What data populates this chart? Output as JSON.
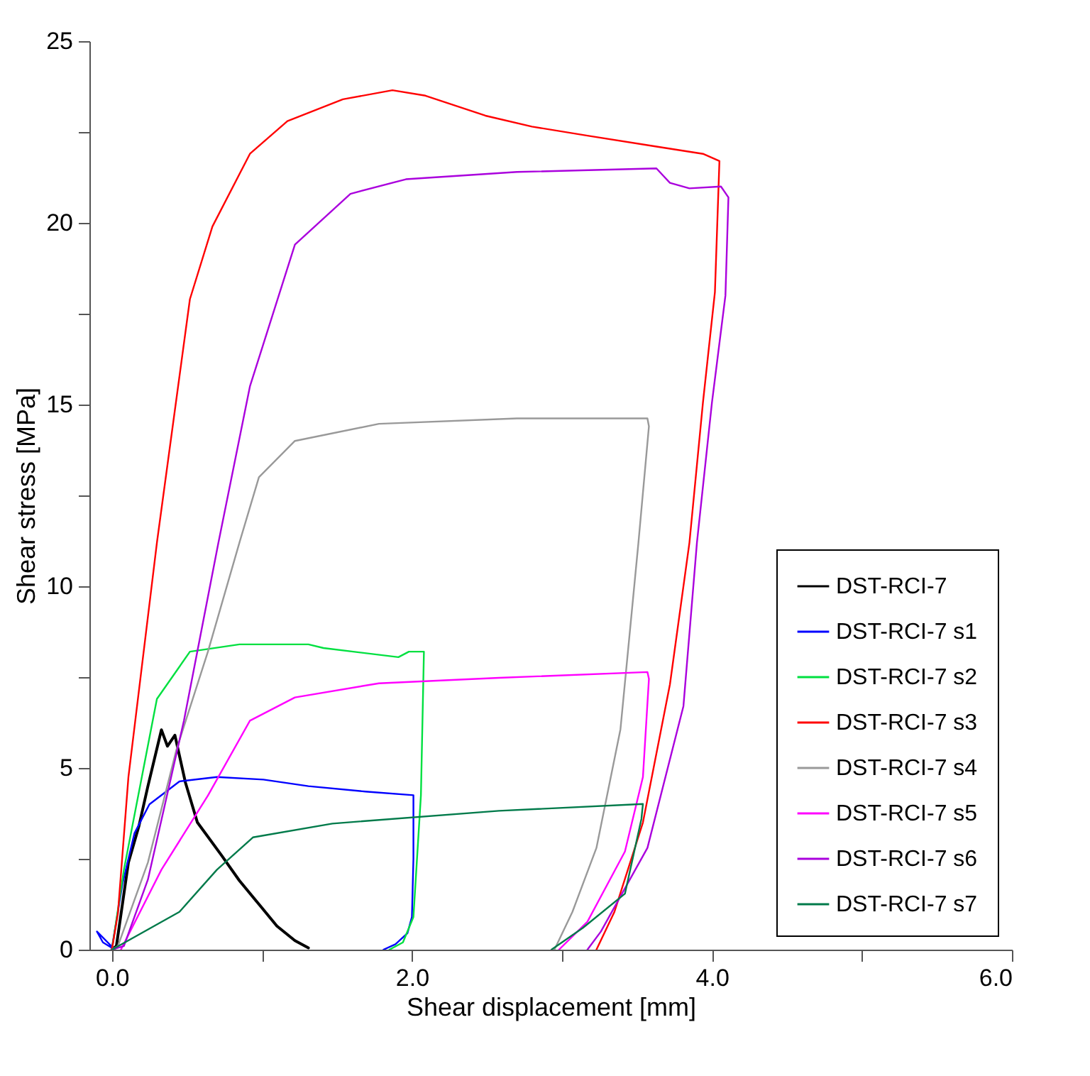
{
  "chart_data": {
    "type": "line",
    "xlabel": "Shear displacement [mm]",
    "ylabel": "Shear stress [MPa]",
    "xlim": [
      -0.15,
      6.0
    ],
    "xticks": [
      {
        "value": 0,
        "label": "0.0"
      },
      {
        "value": 1,
        "label": null
      },
      {
        "value": 2,
        "label": "2.0"
      },
      {
        "value": 3,
        "label": null
      },
      {
        "value": 4,
        "label": "4.0"
      },
      {
        "value": 5,
        "label": null
      },
      {
        "value": 6,
        "label": "6.0"
      }
    ],
    "ylim": [
      0,
      25
    ],
    "yticks": [
      0,
      {
        "value": 2.5,
        "label": null
      },
      5,
      {
        "value": 7.5,
        "label": null
      },
      10,
      {
        "value": 12.5,
        "label": null
      },
      15,
      {
        "value": 17.5,
        "label": null
      },
      20,
      {
        "value": 22.5,
        "label": null
      },
      25
    ],
    "grid": false,
    "legend": "bottom right",
    "marker": "none",
    "line_style": "solid",
    "series": [
      {
        "name": "DST-RCI-7",
        "color": "#000000",
        "x": [
          0,
          0.03,
          0.11,
          0.18,
          0.24,
          0.33,
          0.37,
          0.42,
          0.49,
          0.57,
          0.73,
          0.85,
          0.99,
          1.1,
          1.22,
          1.31
        ],
        "values": [
          0,
          0.1,
          2.4,
          3.4,
          4.5,
          6.05,
          5.6,
          5.9,
          4.6,
          3.5,
          2.6,
          1.9,
          1.2,
          0.65,
          0.25,
          0.05
        ]
      },
      {
        "name": "DST-RCI-7 s1",
        "color": "#0000ff",
        "x": [
          0.02,
          -0.1,
          -0.06,
          0,
          0.07,
          0.15,
          0.25,
          0.45,
          0.7,
          1.01,
          1.31,
          1.69,
          2.01,
          2.01,
          2.0,
          1.97,
          1.89,
          1.81
        ],
        "values": [
          0,
          0.5,
          0.2,
          0.05,
          1.8,
          3.2,
          4.0,
          4.63,
          4.75,
          4.68,
          4.5,
          4.35,
          4.25,
          2.5,
          0.9,
          0.45,
          0.15,
          0
        ]
      },
      {
        "name": "DST-RCI-7 s2",
        "color": "#00e040",
        "x": [
          0,
          0.08,
          0.3,
          0.52,
          0.85,
          1.31,
          1.41,
          1.91,
          1.98,
          2.08,
          2.06,
          2.01,
          1.94,
          1.85
        ],
        "values": [
          0,
          2.2,
          6.9,
          8.2,
          8.4,
          8.4,
          8.3,
          8.05,
          8.2,
          8.2,
          4.25,
          0.9,
          0.2,
          0
        ]
      },
      {
        "name": "DST-RCI-7 s3",
        "color": "#ff0000",
        "x": [
          0,
          0.04,
          0.11,
          0.3,
          0.52,
          0.67,
          0.92,
          1.17,
          1.54,
          1.87,
          2.09,
          2.49,
          2.8,
          3.17,
          3.63,
          3.94,
          4.05,
          4.02,
          3.94,
          3.85,
          3.72,
          3.54,
          3.35,
          3.23
        ],
        "values": [
          0,
          1.0,
          4.75,
          11.2,
          17.9,
          19.9,
          21.9,
          22.8,
          23.4,
          23.65,
          23.5,
          22.95,
          22.65,
          22.4,
          22.1,
          21.9,
          21.7,
          18.1,
          15.05,
          11.2,
          7.3,
          3.5,
          1.04,
          0
        ]
      },
      {
        "name": "DST-RCI-7 s4",
        "color": "#999999",
        "x": [
          0,
          0.04,
          0.24,
          0.43,
          0.64,
          0.85,
          0.98,
          1.22,
          1.78,
          2.7,
          3.57,
          3.58,
          3.51,
          3.39,
          3.23,
          3.07,
          2.95
        ],
        "values": [
          0,
          0.1,
          2.4,
          5.5,
          8.2,
          11.2,
          13.0,
          14.0,
          14.47,
          14.62,
          14.62,
          14.4,
          11.2,
          6.06,
          2.8,
          1.04,
          0
        ]
      },
      {
        "name": "DST-RCI-7 s5",
        "color": "#ff00ff",
        "x": [
          0.06,
          0.33,
          0.64,
          0.92,
          1.22,
          1.78,
          2.58,
          3.57,
          3.58,
          3.54,
          3.42,
          3.17,
          2.98
        ],
        "values": [
          0,
          2.2,
          4.24,
          6.3,
          6.94,
          7.33,
          7.48,
          7.64,
          7.45,
          4.75,
          2.7,
          0.77,
          0
        ]
      },
      {
        "name": "DST-RCI-7 s6",
        "color": "#aa00dd",
        "x": [
          0,
          0.08,
          0.24,
          0.48,
          0.71,
          0.92,
          1.22,
          1.59,
          1.96,
          2.7,
          3.63,
          3.72,
          3.85,
          4.06,
          4.11,
          4.09,
          4.0,
          3.9,
          3.81,
          3.57,
          3.26,
          3.17
        ],
        "values": [
          0,
          0.1,
          1.93,
          6.3,
          11.2,
          15.5,
          19.4,
          20.8,
          21.2,
          21.4,
          21.5,
          21.1,
          20.95,
          21.0,
          20.7,
          18.0,
          15.05,
          11.2,
          6.7,
          2.8,
          0.5,
          0
        ]
      },
      {
        "name": "DST-RCI-7 s7",
        "color": "#007a4a",
        "x": [
          0,
          0.45,
          0.7,
          0.94,
          1.47,
          2.58,
          3.54,
          3.53,
          3.42,
          3.14,
          2.93
        ],
        "values": [
          0,
          1.04,
          2.2,
          3.09,
          3.47,
          3.82,
          4.01,
          3.6,
          1.54,
          0.6,
          0
        ]
      }
    ]
  }
}
